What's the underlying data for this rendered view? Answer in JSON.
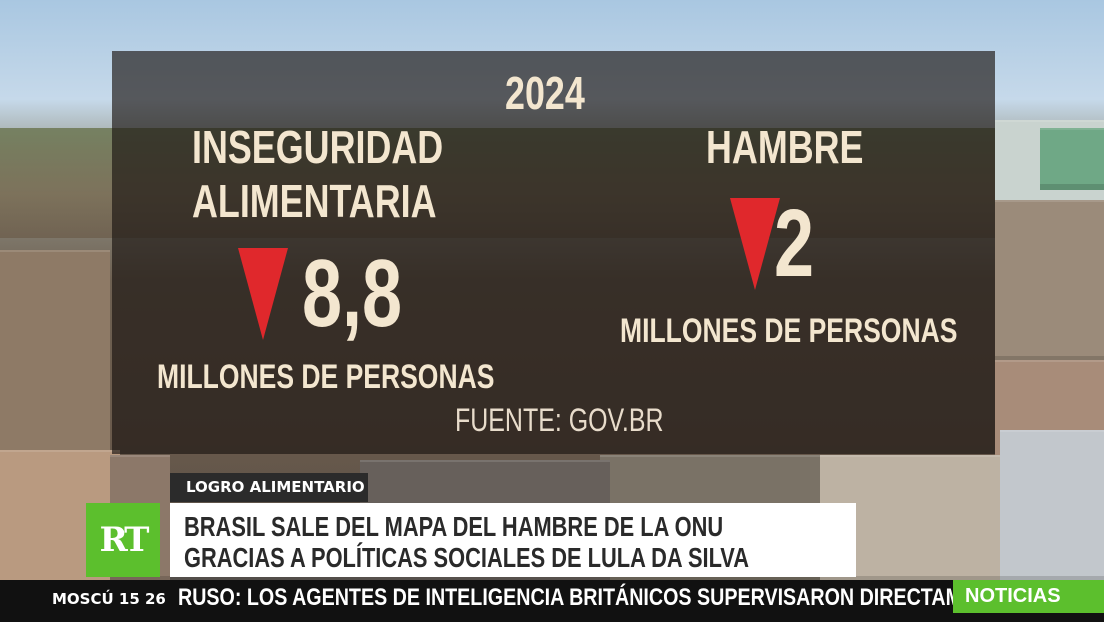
{
  "infographic": {
    "year": "2024",
    "food_insecurity": {
      "title_line1": "INSEGURIDAD",
      "title_line2": "ALIMENTARIA",
      "value": "8,8",
      "unit": "MILLONES DE PERSONAS",
      "trend_icon": "down-triangle-icon"
    },
    "hunger": {
      "title": "HAMBRE",
      "value": "2",
      "unit": "MILLONES DE PERSONAS",
      "trend_icon": "down-triangle-icon"
    },
    "source": "FUENTE: GOV.BR"
  },
  "lower_third": {
    "tag": "LOGRO ALIMENTARIO",
    "logo": "RT",
    "headline_line1": "BRASIL SALE DEL MAPA DEL HAMBRE DE LA ONU",
    "headline_line2": "GRACIAS A POLÍTICAS SOCIALES DE LULA DA SILVA"
  },
  "ticker": {
    "clock": "MOSCÚ 15 26",
    "text": "RUSO: LOS AGENTES DE INTELIGENCIA BRITÁNICOS SUPERVISARON DIRECTAM",
    "section": "NOTICIAS"
  },
  "colors": {
    "accent_green": "#5cbf2d",
    "down_arrow_red": "#e0282c",
    "infographic_text": "#f3e6cf",
    "panel_overlay": "#1c1612"
  }
}
